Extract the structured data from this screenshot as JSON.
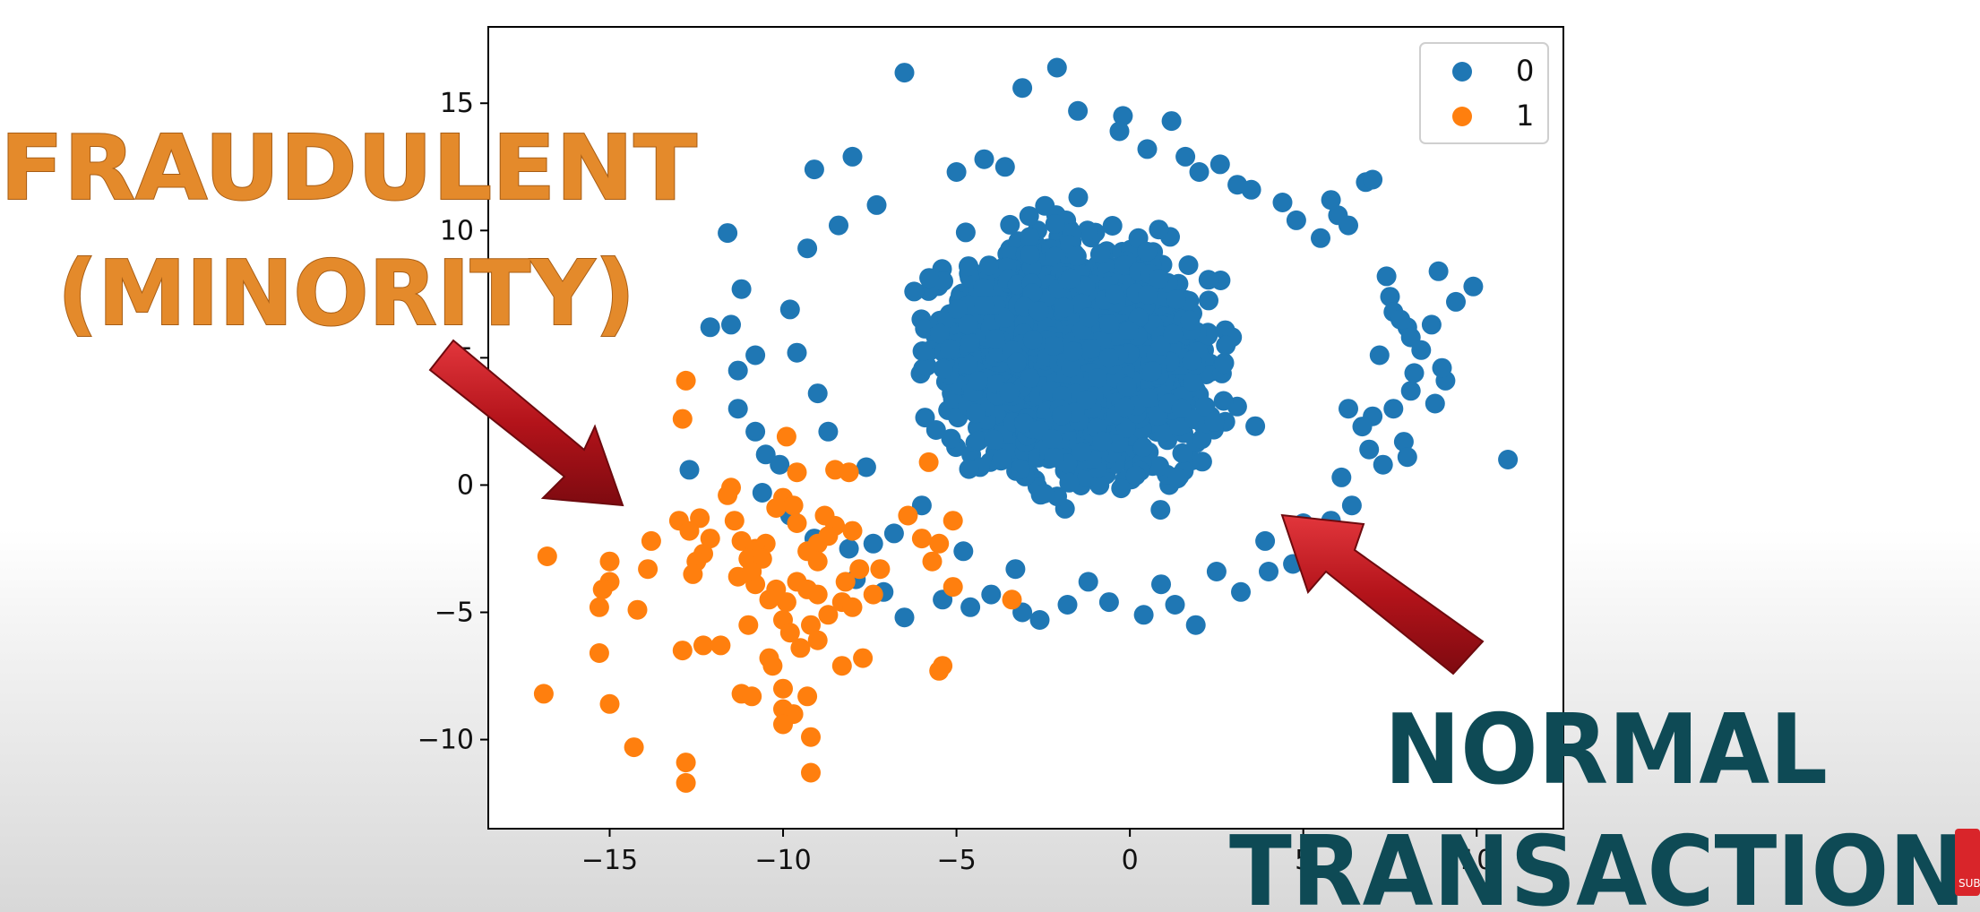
{
  "chart_data": {
    "type": "scatter",
    "xlim": [
      -18.5,
      12.5
    ],
    "ylim": [
      -13.5,
      18
    ],
    "x_ticks": [
      {
        "value": -15,
        "label": "−15"
      },
      {
        "value": -10,
        "label": "−10"
      },
      {
        "value": -5,
        "label": "−5"
      },
      {
        "value": 0,
        "label": "0"
      },
      {
        "value": 5,
        "label": "5"
      },
      {
        "value": 10,
        "label": "10"
      }
    ],
    "y_ticks": [
      {
        "value": -10,
        "label": "−10"
      },
      {
        "value": -5,
        "label": "−5"
      },
      {
        "value": 0,
        "label": "0"
      },
      {
        "value": 5,
        "label": "5"
      },
      {
        "value": 10,
        "label": "10"
      },
      {
        "value": 15,
        "label": "15"
      }
    ],
    "grid": false,
    "legend": "top-right",
    "series": [
      {
        "name": "0",
        "color": "#1f77b4",
        "cluster": {
          "center": [
            -1.5,
            5.0
          ],
          "radius_x": 5.6,
          "radius_y": 6.6,
          "count": 2600
        },
        "points": [
          [
            -6.5,
            16.2
          ],
          [
            -2.1,
            16.4
          ],
          [
            -3.1,
            15.6
          ],
          [
            -1.5,
            14.7
          ],
          [
            -0.2,
            14.5
          ],
          [
            1.2,
            14.3
          ],
          [
            2.0,
            12.3
          ],
          [
            2.6,
            12.6
          ],
          [
            6.8,
            11.9
          ],
          [
            7.0,
            12.0
          ],
          [
            -9.1,
            12.4
          ],
          [
            -8.0,
            12.9
          ],
          [
            -11.6,
            9.9
          ],
          [
            -11.2,
            7.7
          ],
          [
            -12.1,
            6.2
          ],
          [
            -11.5,
            6.3
          ],
          [
            -11.3,
            4.5
          ],
          [
            -10.8,
            5.1
          ],
          [
            -11.3,
            3.0
          ],
          [
            -10.8,
            2.1
          ],
          [
            -12.7,
            0.6
          ],
          [
            -10.5,
            1.2
          ],
          [
            -10.1,
            0.8
          ],
          [
            -10.6,
            -0.3
          ],
          [
            -9.8,
            -1.2
          ],
          [
            -9.1,
            -2.1
          ],
          [
            -8.1,
            -2.5
          ],
          [
            -7.4,
            -2.3
          ],
          [
            -6.8,
            -1.9
          ],
          [
            -7.9,
            -3.7
          ],
          [
            -7.1,
            -4.2
          ],
          [
            -6.5,
            -5.2
          ],
          [
            -5.4,
            -4.5
          ],
          [
            -4.6,
            -4.8
          ],
          [
            -4.0,
            -4.3
          ],
          [
            -3.1,
            -5.0
          ],
          [
            -2.6,
            -5.3
          ],
          [
            -1.8,
            -4.7
          ],
          [
            -0.6,
            -4.6
          ],
          [
            0.4,
            -5.1
          ],
          [
            1.3,
            -4.7
          ],
          [
            1.9,
            -5.5
          ],
          [
            3.2,
            -4.2
          ],
          [
            4.0,
            -3.4
          ],
          [
            4.7,
            -3.1
          ],
          [
            5.4,
            -3.0
          ],
          [
            5.8,
            -1.4
          ],
          [
            6.4,
            -0.8
          ],
          [
            7.3,
            0.8
          ],
          [
            7.9,
            1.7
          ],
          [
            8.0,
            1.1
          ],
          [
            8.8,
            3.2
          ],
          [
            8.1,
            3.7
          ],
          [
            9.1,
            4.1
          ],
          [
            9.0,
            4.6
          ],
          [
            8.2,
            4.4
          ],
          [
            8.9,
            8.4
          ],
          [
            9.9,
            7.8
          ],
          [
            9.4,
            7.2
          ],
          [
            7.5,
            7.4
          ],
          [
            7.4,
            8.2
          ],
          [
            7.6,
            6.8
          ],
          [
            8.0,
            6.2
          ],
          [
            8.1,
            5.8
          ],
          [
            7.8,
            6.5
          ],
          [
            7.2,
            5.1
          ],
          [
            7.0,
            2.7
          ],
          [
            6.7,
            2.3
          ],
          [
            6.3,
            3.0
          ],
          [
            6.0,
            10.6
          ],
          [
            6.3,
            10.2
          ],
          [
            5.8,
            11.2
          ],
          [
            4.4,
            11.1
          ],
          [
            3.5,
            11.6
          ],
          [
            10.9,
            1.0
          ],
          [
            -9.3,
            9.3
          ],
          [
            -8.4,
            10.2
          ],
          [
            -7.3,
            11.0
          ],
          [
            -5.0,
            12.3
          ],
          [
            -4.2,
            12.8
          ],
          [
            -3.6,
            12.5
          ],
          [
            -0.3,
            13.9
          ],
          [
            0.5,
            13.2
          ],
          [
            1.6,
            12.9
          ],
          [
            3.1,
            11.8
          ],
          [
            4.8,
            10.4
          ],
          [
            5.5,
            9.7
          ],
          [
            -9.8,
            6.9
          ],
          [
            -9.6,
            5.2
          ],
          [
            -9.0,
            3.6
          ],
          [
            -8.7,
            2.1
          ],
          [
            -7.6,
            0.7
          ],
          [
            -6.0,
            -0.8
          ],
          [
            -4.8,
            -2.6
          ],
          [
            -3.3,
            -3.3
          ],
          [
            -1.2,
            -3.8
          ],
          [
            0.9,
            -3.9
          ],
          [
            2.5,
            -3.4
          ],
          [
            3.9,
            -2.2
          ],
          [
            5.0,
            -1.5
          ],
          [
            6.1,
            0.3
          ],
          [
            6.9,
            1.4
          ],
          [
            7.6,
            3.0
          ],
          [
            8.4,
            5.3
          ],
          [
            8.7,
            6.3
          ]
        ]
      },
      {
        "name": "1",
        "color": "#ff7f0e",
        "points": [
          [
            -12.8,
            4.1
          ],
          [
            -12.9,
            2.6
          ],
          [
            -9.9,
            1.9
          ],
          [
            -5.8,
            0.9
          ],
          [
            -9.6,
            0.5
          ],
          [
            -8.5,
            0.6
          ],
          [
            -8.1,
            0.5
          ],
          [
            -11.5,
            -0.1
          ],
          [
            -11.6,
            -0.4
          ],
          [
            -10.0,
            -0.5
          ],
          [
            -9.7,
            -0.8
          ],
          [
            -10.2,
            -0.9
          ],
          [
            -11.4,
            -1.4
          ],
          [
            -12.4,
            -1.3
          ],
          [
            -13.0,
            -1.4
          ],
          [
            -12.7,
            -1.8
          ],
          [
            -13.8,
            -2.2
          ],
          [
            -12.1,
            -2.1
          ],
          [
            -11.2,
            -2.2
          ],
          [
            -10.5,
            -2.3
          ],
          [
            -10.8,
            -2.5
          ],
          [
            -11.0,
            -2.9
          ],
          [
            -12.3,
            -2.7
          ],
          [
            -12.5,
            -3.0
          ],
          [
            -16.8,
            -2.8
          ],
          [
            -15.0,
            -3.0
          ],
          [
            -13.9,
            -3.3
          ],
          [
            -12.6,
            -3.5
          ],
          [
            -11.3,
            -3.6
          ],
          [
            -10.8,
            -3.9
          ],
          [
            -10.2,
            -4.1
          ],
          [
            -9.6,
            -3.8
          ],
          [
            -9.3,
            -4.1
          ],
          [
            -9.0,
            -4.3
          ],
          [
            -15.0,
            -3.8
          ],
          [
            -15.2,
            -4.1
          ],
          [
            -10.4,
            -4.5
          ],
          [
            -9.9,
            -4.6
          ],
          [
            -8.3,
            -4.6
          ],
          [
            -8.0,
            -4.8
          ],
          [
            -7.4,
            -4.3
          ],
          [
            -15.3,
            -4.8
          ],
          [
            -14.2,
            -4.9
          ],
          [
            -11.0,
            -5.5
          ],
          [
            -10.0,
            -5.3
          ],
          [
            -9.8,
            -5.8
          ],
          [
            -9.2,
            -5.5
          ],
          [
            -8.7,
            -5.1
          ],
          [
            -15.3,
            -6.6
          ],
          [
            -12.9,
            -6.5
          ],
          [
            -12.3,
            -6.3
          ],
          [
            -11.8,
            -6.3
          ],
          [
            -10.4,
            -6.8
          ],
          [
            -10.3,
            -7.1
          ],
          [
            -9.5,
            -6.4
          ],
          [
            -9.0,
            -6.1
          ],
          [
            -8.3,
            -7.1
          ],
          [
            -7.7,
            -6.8
          ],
          [
            -5.4,
            -7.1
          ],
          [
            -5.5,
            -7.3
          ],
          [
            -16.9,
            -8.2
          ],
          [
            -15.0,
            -8.6
          ],
          [
            -11.2,
            -8.2
          ],
          [
            -10.9,
            -8.3
          ],
          [
            -10.0,
            -8.0
          ],
          [
            -9.3,
            -8.3
          ],
          [
            -10.0,
            -8.8
          ],
          [
            -9.7,
            -9.0
          ],
          [
            -10.0,
            -9.4
          ],
          [
            -9.2,
            -9.9
          ],
          [
            -14.3,
            -10.3
          ],
          [
            -12.8,
            -10.9
          ],
          [
            -12.8,
            -11.7
          ],
          [
            -9.2,
            -11.3
          ],
          [
            -7.8,
            -3.3
          ],
          [
            -7.2,
            -3.3
          ],
          [
            -8.0,
            -1.8
          ],
          [
            -8.8,
            -1.2
          ],
          [
            -8.5,
            -1.6
          ],
          [
            -6.4,
            -1.2
          ],
          [
            -6.0,
            -2.1
          ],
          [
            -5.1,
            -1.4
          ],
          [
            -5.5,
            -2.3
          ],
          [
            -5.7,
            -3.0
          ],
          [
            -5.1,
            -4.0
          ],
          [
            -3.4,
            -4.5
          ],
          [
            -9.3,
            -2.6
          ],
          [
            -9.0,
            -2.3
          ],
          [
            -8.7,
            -2.0
          ],
          [
            -10.6,
            -2.9
          ],
          [
            -10.9,
            -3.4
          ],
          [
            -9.0,
            -3.0
          ],
          [
            -8.2,
            -3.8
          ],
          [
            -9.6,
            -1.5
          ]
        ]
      }
    ]
  },
  "overlay": {
    "fraudulent_line1": "FRAUDULENT",
    "fraudulent_line2": "(MINORITY)",
    "normal_line1": "NORMAL",
    "normal_line2": "TRANSACTION"
  },
  "colors": {
    "arrow": "#b3131a",
    "fraud_text": "#e48a2b",
    "normal_text": "#0e4a55",
    "subscribe_badge": "#d9252a"
  },
  "badge": {
    "label": "SUB",
    "icon": "subscribe-icon"
  }
}
